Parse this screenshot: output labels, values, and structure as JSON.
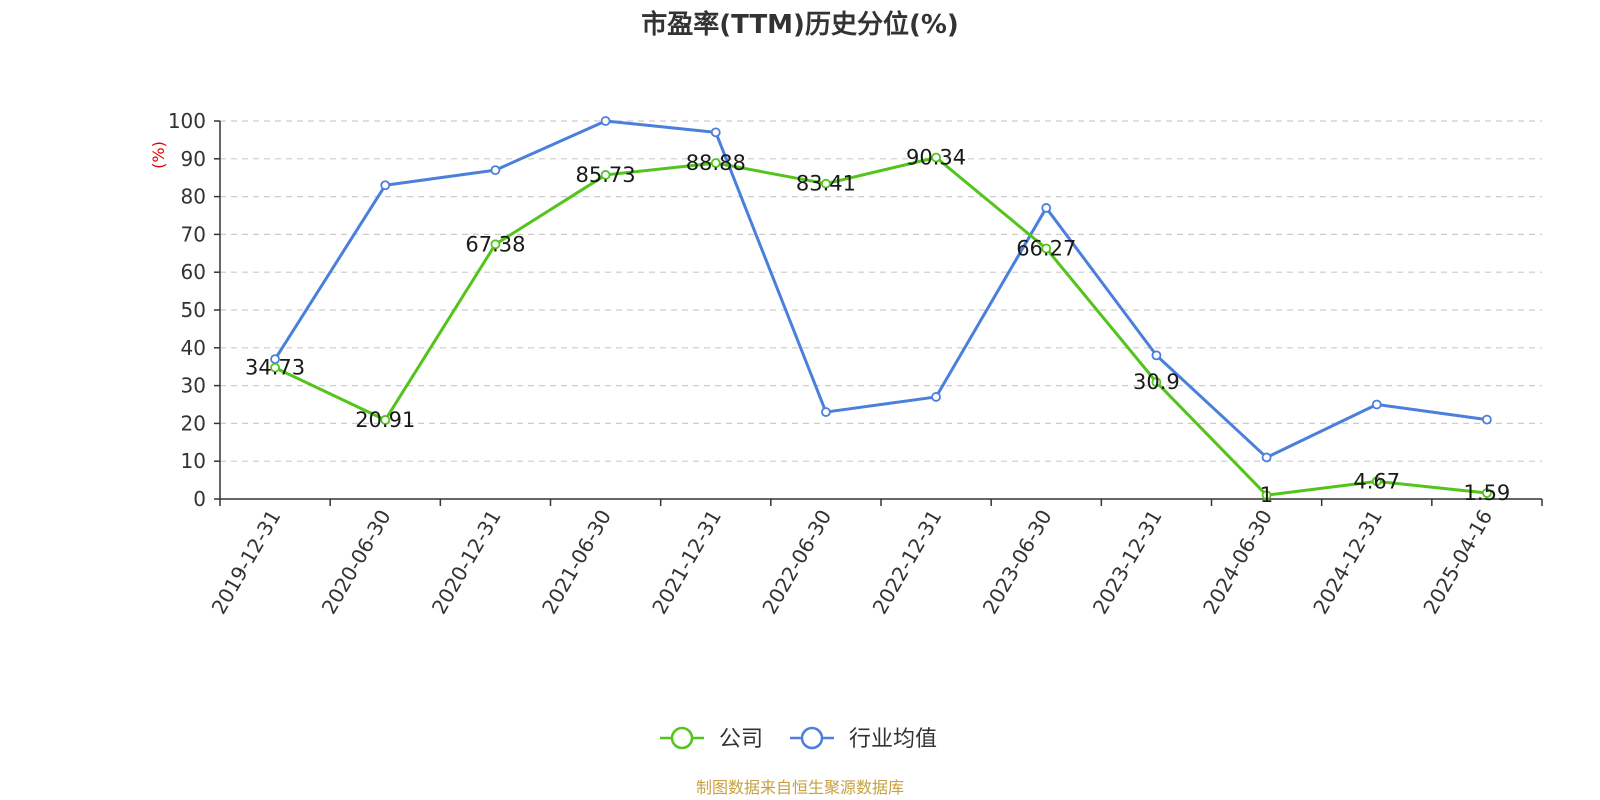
{
  "colors": {
    "company": "#52c41a",
    "industry": "#4a7fdc",
    "grid": "#cccccc",
    "axis": "#333333",
    "source": "#c8a040",
    "unit": "#e60000"
  },
  "footer": {
    "source": "制图数据来自恒生聚源数据库"
  },
  "chart_data": {
    "type": "line",
    "title": "市盈率(TTM)历史分位(%)",
    "ylabel": "(%)",
    "xlabel": "",
    "ylim": [
      0,
      100
    ],
    "yticks": [
      0,
      10,
      20,
      30,
      40,
      50,
      60,
      70,
      80,
      90,
      100
    ],
    "grid": true,
    "legend_position": "bottom-center",
    "categories": [
      "2019-12-31",
      "2020-06-30",
      "2020-12-31",
      "2021-06-30",
      "2021-12-31",
      "2022-06-30",
      "2022-12-31",
      "2023-06-30",
      "2023-12-31",
      "2024-06-30",
      "2024-12-31",
      "2025-04-16"
    ],
    "series": [
      {
        "name": "公司",
        "values": [
          34.73,
          20.91,
          67.38,
          85.73,
          88.88,
          83.41,
          90.34,
          66.27,
          30.9,
          1,
          4.67,
          1.59
        ],
        "show_labels": true
      },
      {
        "name": "行业均值",
        "values": [
          37,
          83,
          87,
          100,
          97,
          23,
          27,
          77,
          38,
          11,
          25,
          21
        ],
        "show_labels": false
      }
    ]
  }
}
